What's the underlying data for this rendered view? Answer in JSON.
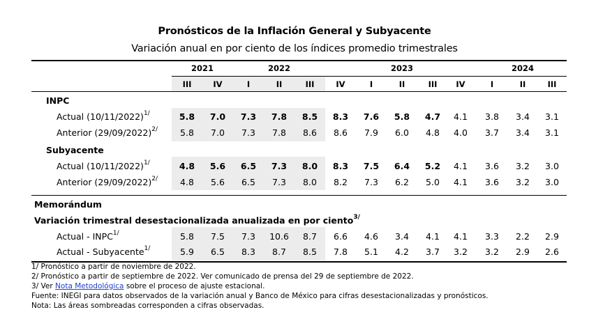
{
  "title": "Pronósticos de la Inflación General y Subyacente",
  "subtitle": "Variación anual en por ciento de los índices promedio trimestrales",
  "years": [
    {
      "label": "2021"
    },
    {
      "label": "2022"
    },
    {
      "label": "2023"
    },
    {
      "label": "2024"
    }
  ],
  "quarters": [
    "III",
    "IV",
    "I",
    "II",
    "III",
    "IV",
    "I",
    "II",
    "III",
    "IV",
    "I",
    "II",
    "III"
  ],
  "sections": [
    {
      "label": "INPC"
    },
    {
      "label": "Subyacente"
    }
  ],
  "rows": [
    {
      "label": "Actual (10/11/2022)",
      "sup": "1/",
      "bold": true,
      "values": [
        "5.8",
        "7.0",
        "7.3",
        "7.8",
        "8.5",
        "8.3",
        "7.6",
        "5.8",
        "4.7",
        "4.1",
        "3.8",
        "3.4",
        "3.1"
      ]
    },
    {
      "label": "Anterior (29/09/2022)",
      "sup": "2/",
      "bold": false,
      "values": [
        "5.8",
        "7.0",
        "7.3",
        "7.8",
        "8.6",
        "8.6",
        "7.9",
        "6.0",
        "4.8",
        "4.0",
        "3.7",
        "3.4",
        "3.1"
      ]
    },
    {
      "label": "Actual (10/11/2022)",
      "sup": "1/",
      "bold": true,
      "values": [
        "4.8",
        "5.6",
        "6.5",
        "7.3",
        "8.0",
        "8.3",
        "7.5",
        "6.4",
        "5.2",
        "4.1",
        "3.6",
        "3.2",
        "3.0"
      ]
    },
    {
      "label": "Anterior (29/09/2022)",
      "sup": "2/",
      "bold": false,
      "values": [
        "4.8",
        "5.6",
        "6.5",
        "7.3",
        "8.0",
        "8.2",
        "7.3",
        "6.2",
        "5.0",
        "4.1",
        "3.6",
        "3.2",
        "3.0"
      ]
    },
    {
      "label": "Actual - INPC",
      "sup": "1/",
      "bold": false,
      "values": [
        "5.8",
        "7.5",
        "7.3",
        "10.6",
        "8.7",
        "6.6",
        "4.6",
        "3.4",
        "4.1",
        "4.1",
        "3.3",
        "2.2",
        "2.9"
      ]
    },
    {
      "label": "Actual - Subyacente",
      "sup": "1/",
      "bold": false,
      "values": [
        "5.9",
        "6.5",
        "8.3",
        "8.7",
        "8.5",
        "7.8",
        "5.1",
        "4.2",
        "3.7",
        "3.2",
        "3.2",
        "2.9",
        "2.6"
      ]
    }
  ],
  "memo": {
    "heading": "Memorándum",
    "subheading": "Variación trimestral desestacionalizada anualizada en por ciento",
    "subheading_sup": "3/"
  },
  "notes": {
    "n1": "1/ Pronóstico a partir de noviembre de 2022.",
    "n2": "2/ Pronóstico a partir de septiembre de 2022. Ver comunicado de prensa del 29 de septiembre de 2022.",
    "n3_prefix": "3/ Ver ",
    "n3_link": "Nota Metodológica",
    "n3_suffix": " sobre el proceso de ajuste estacional.",
    "n4": "Fuente: INEGI para datos observados de la variación anual y Banco de México para cifras desestacionalizadas y pronósticos.",
    "n5": "Nota: Las áreas sombreadas corresponden a cifras observadas."
  },
  "colors": {
    "shade": "#ececec",
    "link": "#1f3fd0"
  }
}
